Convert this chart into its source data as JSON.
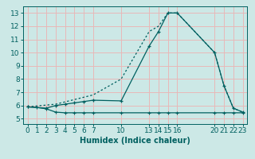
{
  "xlabel": "Humidex (Indice chaleur)",
  "bg_color": "#cce8e6",
  "grid_color": "#e8b8b8",
  "line_color": "#006060",
  "xticks": [
    0,
    1,
    2,
    3,
    4,
    5,
    6,
    7,
    10,
    13,
    14,
    15,
    16,
    20,
    21,
    22,
    23
  ],
  "yticks": [
    5,
    6,
    7,
    8,
    9,
    10,
    11,
    12,
    13
  ],
  "ylim": [
    4.6,
    13.5
  ],
  "xlim": [
    -0.5,
    23.5
  ],
  "line1_x": [
    0,
    1,
    2,
    3,
    4,
    5,
    6,
    7,
    10,
    13,
    14,
    15,
    16,
    20,
    21,
    22,
    23
  ],
  "line1_y": [
    5.9,
    5.85,
    5.75,
    5.5,
    5.45,
    5.45,
    5.45,
    5.45,
    5.45,
    5.45,
    5.45,
    5.45,
    5.45,
    5.45,
    5.45,
    5.45,
    5.45
  ],
  "line2_x": [
    0,
    2,
    3,
    4,
    5,
    6,
    7,
    10,
    13,
    14,
    15,
    16,
    20,
    21,
    22,
    23
  ],
  "line2_y": [
    5.9,
    5.8,
    6.0,
    6.1,
    6.2,
    6.3,
    6.4,
    6.35,
    10.5,
    11.6,
    13.0,
    13.0,
    10.0,
    7.5,
    5.8,
    5.5
  ],
  "line3_x": [
    0,
    3,
    7,
    10,
    13,
    14,
    15,
    16,
    20,
    21,
    22,
    23
  ],
  "line3_y": [
    5.9,
    6.1,
    6.8,
    8.0,
    11.6,
    12.0,
    13.0,
    13.0,
    10.0,
    7.5,
    5.8,
    5.5
  ],
  "xlabel_fontsize": 7,
  "tick_fontsize": 6.5
}
